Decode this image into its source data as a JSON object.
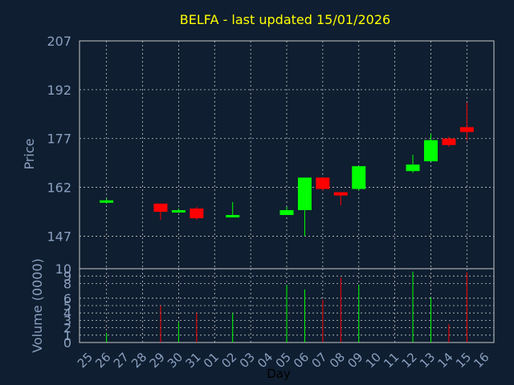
{
  "chart_data": {
    "type": "candlestick",
    "title": "BELFA - last updated 15/01/2026",
    "xlabel": "Day",
    "ylabel_price": "Price",
    "ylabel_volume": "Volume (0000)",
    "price_ylim": [
      137,
      207
    ],
    "price_yticks": [
      "207",
      "192",
      "177",
      "162",
      "147"
    ],
    "price_ytick_values": [
      207,
      192,
      177,
      162,
      147
    ],
    "volume_ylim": [
      0,
      10
    ],
    "volume_yticks": [
      "10",
      "9",
      "8",
      "6",
      "5",
      "4",
      "3",
      "2",
      "1",
      "0"
    ],
    "volume_ytick_values": [
      10,
      9,
      8,
      6,
      5,
      4,
      3,
      2,
      1,
      0
    ],
    "x_labels": [
      "25",
      "26",
      "27",
      "28",
      "29",
      "30",
      "31",
      "01",
      "02",
      "03",
      "04",
      "05",
      "06",
      "07",
      "08",
      "09",
      "10",
      "11",
      "12",
      "13",
      "14",
      "15",
      "16"
    ],
    "grid": true,
    "colors": {
      "background": "#0f1e30",
      "panel_border": "#c8c8c8",
      "grid": "#c8c8c8",
      "up": "#00ff00",
      "down": "#ff0000",
      "title": "#ffff00",
      "axis_text": "#8aa0c0",
      "label_text": "#8aa0c0",
      "xlabel_text": "#000000"
    },
    "candles": [
      {
        "x": "26",
        "open": 157.5,
        "close": 158.0,
        "high": 158.5,
        "low": 157.0,
        "volume": 1.3
      },
      {
        "x": "29",
        "open": 157.0,
        "close": 154.5,
        "high": 157.0,
        "low": 152.0,
        "volume": 5.0
      },
      {
        "x": "30",
        "open": 154.5,
        "close": 155.0,
        "high": 155.5,
        "low": 154.5,
        "volume": 2.8
      },
      {
        "x": "31",
        "open": 155.5,
        "close": 152.5,
        "high": 156.0,
        "low": 152.0,
        "volume": 4.0
      },
      {
        "x": "02",
        "open": 153.0,
        "close": 153.5,
        "high": 157.5,
        "low": 153.0,
        "volume": 4.0
      },
      {
        "x": "05",
        "open": 153.5,
        "close": 155.0,
        "high": 156.0,
        "low": 153.5,
        "volume": 7.8
      },
      {
        "x": "06",
        "open": 155.0,
        "close": 165.0,
        "high": 165.0,
        "low": 147.0,
        "volume": 7.2
      },
      {
        "x": "07",
        "open": 165.0,
        "close": 161.5,
        "high": 165.0,
        "low": 161.0,
        "volume": 5.8
      },
      {
        "x": "08",
        "open": 160.5,
        "close": 159.5,
        "high": 160.5,
        "low": 156.5,
        "volume": 8.8
      },
      {
        "x": "09",
        "open": 161.5,
        "close": 168.5,
        "high": 168.5,
        "low": 161.0,
        "volume": 7.8
      },
      {
        "x": "12",
        "open": 167.0,
        "close": 169.0,
        "high": 172.0,
        "low": 166.5,
        "volume": 9.6
      },
      {
        "x": "13",
        "open": 170.0,
        "close": 176.5,
        "high": 178.5,
        "low": 170.0,
        "volume": 6.1
      },
      {
        "x": "14",
        "open": 177.0,
        "close": 175.0,
        "high": 177.5,
        "low": 174.5,
        "volume": 2.5
      },
      {
        "x": "15",
        "open": 180.5,
        "close": 179.0,
        "high": 188.0,
        "low": 176.5,
        "volume": 9.5
      }
    ]
  }
}
